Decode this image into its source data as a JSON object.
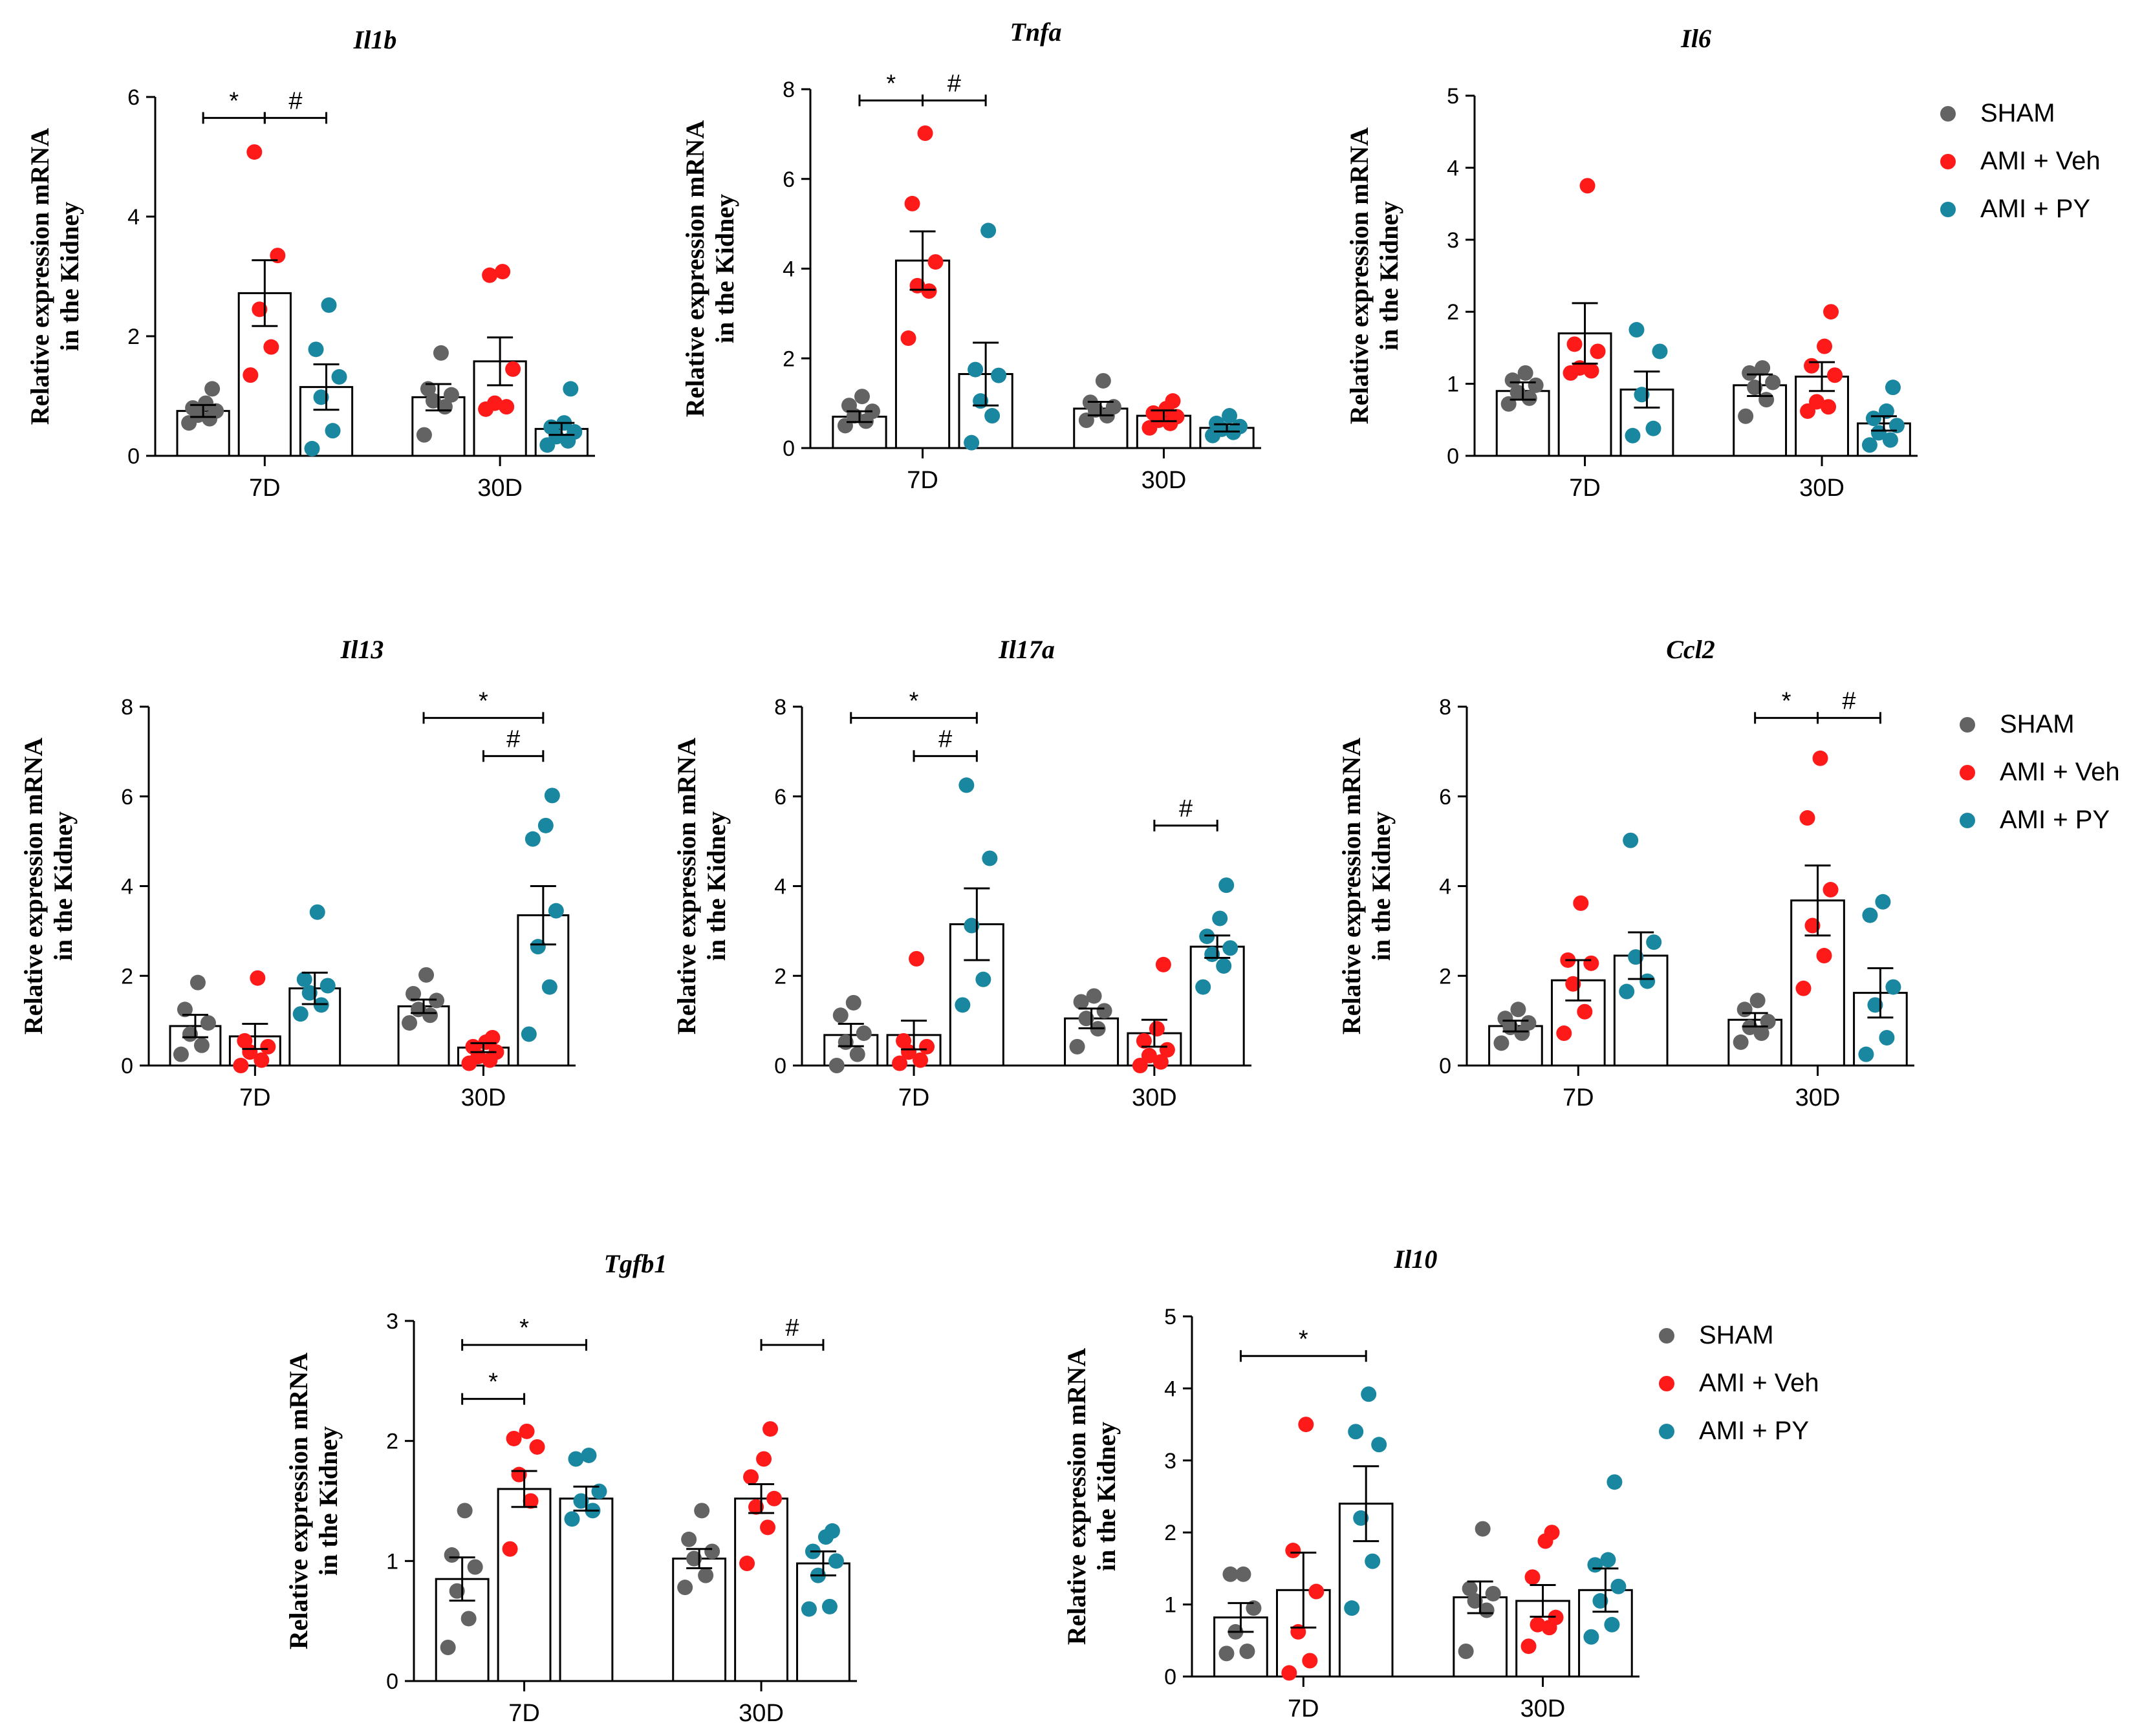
{
  "figure": {
    "legend_labels": [
      "SHAM",
      "AMI + Veh",
      "AMI + PY"
    ],
    "colors": {
      "SHAM": "#636363",
      "AMI + Veh": "#ff1a1a",
      "AMI + PY": "#1a87a0"
    }
  },
  "chart_data": [
    {
      "type": "bar",
      "title": "Il1b",
      "ylabel": "Relative expression mRNA\nin the Kidney",
      "categories": [
        "7D",
        "30D"
      ],
      "ylim": [
        0,
        6
      ],
      "yticks": [
        0,
        2,
        4,
        6
      ],
      "legend": "right",
      "series": [
        {
          "name": "SHAM",
          "values": [
            0.75,
            0.98
          ],
          "sem": [
            0.1,
            0.22
          ],
          "points": [
            [
              0.55,
              0.62,
              0.68,
              0.75,
              0.8,
              0.88,
              1.12
            ],
            [
              0.35,
              0.82,
              0.92,
              1.02,
              1.12,
              1.72
            ]
          ]
        },
        {
          "name": "AMI + Veh",
          "values": [
            2.72,
            1.58
          ],
          "sem": [
            0.55,
            0.4
          ],
          "points": [
            [
              1.35,
              1.82,
              2.45,
              3.35,
              5.08
            ],
            [
              0.78,
              0.82,
              0.88,
              1.45,
              3.02,
              3.08
            ]
          ]
        },
        {
          "name": "AMI + PY",
          "values": [
            1.15,
            0.45
          ],
          "sem": [
            0.38,
            0.1
          ],
          "points": [
            [
              0.12,
              0.42,
              0.98,
              1.32,
              1.78,
              2.52
            ],
            [
              0.18,
              0.25,
              0.32,
              0.4,
              0.48,
              0.55,
              1.12
            ]
          ]
        }
      ],
      "significance": [
        {
          "label": "*",
          "from": 0,
          "to": 1,
          "y": 5.65
        },
        {
          "label": "#",
          "from": 1,
          "to": 2,
          "y": 5.65
        }
      ]
    },
    {
      "type": "bar",
      "title": "Tnfa",
      "ylabel": "Relative expression mRNA\nin the Kidney",
      "categories": [
        "7D",
        "30D"
      ],
      "ylim": [
        0,
        8
      ],
      "yticks": [
        0,
        2,
        4,
        6,
        8
      ],
      "series": [
        {
          "name": "SHAM",
          "values": [
            0.7,
            0.88
          ],
          "sem": [
            0.12,
            0.15
          ],
          "points": [
            [
              0.5,
              0.6,
              0.72,
              0.82,
              0.95,
              1.15
            ],
            [
              0.62,
              0.72,
              0.85,
              0.92,
              1.02,
              1.5
            ]
          ]
        },
        {
          "name": "AMI + Veh",
          "values": [
            4.18,
            0.72
          ],
          "sem": [
            0.65,
            0.12
          ],
          "points": [
            [
              2.45,
              3.5,
              3.62,
              4.15,
              5.45,
              7.02
            ],
            [
              0.45,
              0.55,
              0.62,
              0.7,
              0.78,
              0.88,
              1.05
            ]
          ]
        },
        {
          "name": "AMI + PY",
          "values": [
            1.65,
            0.45
          ],
          "sem": [
            0.7,
            0.08
          ],
          "points": [
            [
              0.12,
              0.72,
              1.05,
              1.62,
              1.75,
              4.85
            ],
            [
              0.28,
              0.35,
              0.42,
              0.48,
              0.55,
              0.72
            ]
          ]
        }
      ],
      "significance": [
        {
          "label": "*",
          "from": 0,
          "to": 1,
          "y": 7.75
        },
        {
          "label": "#",
          "from": 1,
          "to": 2,
          "y": 7.75
        }
      ]
    },
    {
      "type": "bar",
      "title": "Il6",
      "ylabel": "Relative expression mRNA\nin the Kidney",
      "categories": [
        "7D",
        "30D"
      ],
      "ylim": [
        0,
        5
      ],
      "yticks": [
        0,
        1,
        2,
        3,
        4,
        5
      ],
      "series": [
        {
          "name": "SHAM",
          "values": [
            0.9,
            0.98
          ],
          "sem": [
            0.12,
            0.15
          ],
          "points": [
            [
              0.72,
              0.8,
              0.88,
              0.98,
              1.05,
              1.15
            ],
            [
              0.55,
              0.78,
              0.95,
              1.02,
              1.15,
              1.22
            ]
          ]
        },
        {
          "name": "AMI + Veh",
          "values": [
            1.7,
            1.1
          ],
          "sem": [
            0.42,
            0.2
          ],
          "points": [
            [
              1.15,
              1.18,
              1.22,
              1.45,
              1.55,
              3.75
            ],
            [
              0.62,
              0.68,
              0.75,
              1.12,
              1.25,
              1.52,
              2.0
            ]
          ]
        },
        {
          "name": "AMI + PY",
          "values": [
            0.92,
            0.45
          ],
          "sem": [
            0.25,
            0.1
          ],
          "points": [
            [
              0.28,
              0.38,
              0.85,
              1.45,
              1.75
            ],
            [
              0.15,
              0.22,
              0.32,
              0.42,
              0.52,
              0.62,
              0.95
            ]
          ]
        }
      ],
      "significance": []
    },
    {
      "type": "bar",
      "title": "Il13",
      "ylabel": "Relative expression mRNA\nin the Kidney",
      "categories": [
        "7D",
        "30D"
      ],
      "ylim": [
        0,
        8
      ],
      "yticks": [
        0,
        2,
        4,
        6,
        8
      ],
      "series": [
        {
          "name": "SHAM",
          "values": [
            0.88,
            1.32
          ],
          "sem": [
            0.25,
            0.15
          ],
          "points": [
            [
              0.25,
              0.45,
              0.7,
              0.95,
              1.25,
              1.85
            ],
            [
              0.95,
              1.12,
              1.25,
              1.45,
              1.6,
              2.02
            ]
          ]
        },
        {
          "name": "AMI + Veh",
          "values": [
            0.65,
            0.4
          ],
          "sem": [
            0.28,
            0.1
          ],
          "points": [
            [
              0.0,
              0.12,
              0.3,
              0.42,
              0.55,
              1.95
            ],
            [
              0.05,
              0.12,
              0.2,
              0.3,
              0.42,
              0.52,
              0.62
            ]
          ]
        },
        {
          "name": "AMI + PY",
          "values": [
            1.72,
            3.35
          ],
          "sem": [
            0.35,
            0.65
          ],
          "points": [
            [
              1.15,
              1.35,
              1.62,
              1.78,
              1.92,
              3.42
            ],
            [
              0.7,
              1.75,
              2.65,
              3.45,
              5.05,
              5.35,
              6.02
            ]
          ]
        }
      ],
      "significance": [
        {
          "label": "*",
          "from": 3,
          "to": 5,
          "y": 7.75
        },
        {
          "label": "#",
          "from": 4,
          "to": 5,
          "y": 6.9
        }
      ]
    },
    {
      "type": "bar",
      "title": "Il17a",
      "ylabel": "Relative expression mRNA\nin the Kidney",
      "categories": [
        "7D",
        "30D"
      ],
      "ylim": [
        0,
        8
      ],
      "yticks": [
        0,
        2,
        4,
        6,
        8
      ],
      "series": [
        {
          "name": "SHAM",
          "values": [
            0.68,
            1.05
          ],
          "sem": [
            0.25,
            0.22
          ],
          "points": [
            [
              0.0,
              0.25,
              0.52,
              0.72,
              1.12,
              1.4
            ],
            [
              0.42,
              0.82,
              1.05,
              1.22,
              1.42,
              1.55
            ]
          ]
        },
        {
          "name": "AMI + Veh",
          "values": [
            0.68,
            0.72
          ],
          "sem": [
            0.32,
            0.3
          ],
          "points": [
            [
              0.05,
              0.12,
              0.3,
              0.42,
              0.55,
              2.38
            ],
            [
              0.0,
              0.08,
              0.22,
              0.35,
              0.55,
              0.82,
              2.25
            ]
          ]
        },
        {
          "name": "AMI + PY",
          "values": [
            3.15,
            2.65
          ],
          "sem": [
            0.8,
            0.25
          ],
          "points": [
            [
              1.35,
              1.92,
              3.12,
              4.62,
              6.25
            ],
            [
              1.75,
              2.22,
              2.48,
              2.62,
              2.88,
              3.28,
              4.02
            ]
          ]
        }
      ],
      "significance": [
        {
          "label": "*",
          "from": 0,
          "to": 2,
          "y": 7.75
        },
        {
          "label": "#",
          "from": 1,
          "to": 2,
          "y": 6.9
        },
        {
          "label": "#",
          "from": 4,
          "to": 5,
          "y": 5.35
        }
      ]
    },
    {
      "type": "bar",
      "title": "Ccl2",
      "ylabel": "Relative expression mRNA\nin the Kidney",
      "categories": [
        "7D",
        "30D"
      ],
      "ylim": [
        0,
        8
      ],
      "yticks": [
        0,
        2,
        4,
        6,
        8
      ],
      "legend": "right",
      "series": [
        {
          "name": "SHAM",
          "values": [
            0.88,
            1.02
          ],
          "sem": [
            0.12,
            0.15
          ],
          "points": [
            [
              0.5,
              0.72,
              0.85,
              0.95,
              1.05,
              1.25
            ],
            [
              0.52,
              0.72,
              0.85,
              0.98,
              1.25,
              1.45
            ]
          ]
        },
        {
          "name": "AMI + Veh",
          "values": [
            1.9,
            3.68
          ],
          "sem": [
            0.45,
            0.78
          ],
          "points": [
            [
              0.72,
              1.2,
              1.82,
              2.28,
              2.35,
              3.62
            ],
            [
              1.72,
              2.45,
              3.12,
              3.92,
              5.52,
              6.85
            ]
          ]
        },
        {
          "name": "AMI + PY",
          "values": [
            2.45,
            1.62
          ],
          "sem": [
            0.52,
            0.55
          ],
          "points": [
            [
              1.65,
              1.88,
              2.42,
              2.75,
              5.02
            ],
            [
              0.25,
              0.62,
              1.35,
              1.75,
              3.35,
              3.65
            ]
          ]
        }
      ],
      "significance": [
        {
          "label": "*",
          "from": 3,
          "to": 4,
          "y": 7.75
        },
        {
          "label": "#",
          "from": 4,
          "to": 5,
          "y": 7.75
        }
      ]
    },
    {
      "type": "bar",
      "title": "Tgfb1",
      "ylabel": "Relative expression mRNA\nin the Kidney",
      "categories": [
        "7D",
        "30D"
      ],
      "ylim": [
        0,
        3
      ],
      "yticks": [
        0,
        1,
        2,
        3
      ],
      "series": [
        {
          "name": "SHAM",
          "values": [
            0.85,
            1.02
          ],
          "sem": [
            0.18,
            0.08
          ],
          "points": [
            [
              0.28,
              0.52,
              0.75,
              0.95,
              1.05,
              1.42
            ],
            [
              0.78,
              0.88,
              1.02,
              1.08,
              1.18,
              1.42
            ]
          ]
        },
        {
          "name": "AMI + Veh",
          "values": [
            1.6,
            1.52
          ],
          "sem": [
            0.15,
            0.12
          ],
          "points": [
            [
              1.1,
              1.5,
              1.72,
              1.95,
              2.02,
              2.08
            ],
            [
              0.98,
              1.28,
              1.45,
              1.52,
              1.7,
              1.85,
              2.1
            ]
          ]
        },
        {
          "name": "AMI + PY",
          "values": [
            1.52,
            0.98
          ],
          "sem": [
            0.1,
            0.1
          ],
          "points": [
            [
              1.35,
              1.42,
              1.5,
              1.58,
              1.85,
              1.88
            ],
            [
              0.6,
              0.62,
              0.88,
              1.0,
              1.08,
              1.2,
              1.25
            ]
          ]
        }
      ],
      "significance": [
        {
          "label": "*",
          "from": 0,
          "to": 2,
          "y": 2.8
        },
        {
          "label": "*",
          "from": 0,
          "to": 1,
          "y": 2.35
        },
        {
          "label": "#",
          "from": 4,
          "to": 5,
          "y": 2.8
        }
      ]
    },
    {
      "type": "bar",
      "title": "Il10",
      "ylabel": "Relative expression mRNA\nin the Kidney",
      "categories": [
        "7D",
        "30D"
      ],
      "ylim": [
        0,
        5
      ],
      "yticks": [
        0,
        1,
        2,
        3,
        4,
        5
      ],
      "legend": "right",
      "series": [
        {
          "name": "SHAM",
          "values": [
            0.82,
            1.1
          ],
          "sem": [
            0.2,
            0.22
          ],
          "points": [
            [
              0.32,
              0.35,
              0.62,
              0.95,
              1.42,
              1.42
            ],
            [
              0.35,
              0.92,
              1.05,
              1.15,
              1.22,
              2.05
            ]
          ]
        },
        {
          "name": "AMI + Veh",
          "values": [
            1.2,
            1.05
          ],
          "sem": [
            0.52,
            0.22
          ],
          "points": [
            [
              0.05,
              0.22,
              0.62,
              1.18,
              1.75,
              3.5
            ],
            [
              0.42,
              0.68,
              0.72,
              0.82,
              1.38,
              1.88,
              2.0
            ]
          ]
        },
        {
          "name": "AMI + PY",
          "values": [
            2.4,
            1.2
          ],
          "sem": [
            0.52,
            0.3
          ],
          "points": [
            [
              0.95,
              1.6,
              2.2,
              3.22,
              3.4,
              3.92
            ],
            [
              0.55,
              0.72,
              1.05,
              1.25,
              1.55,
              1.62,
              2.7
            ]
          ]
        }
      ],
      "significance": [
        {
          "label": "*",
          "from": 0,
          "to": 2,
          "y": 4.45
        }
      ]
    }
  ]
}
